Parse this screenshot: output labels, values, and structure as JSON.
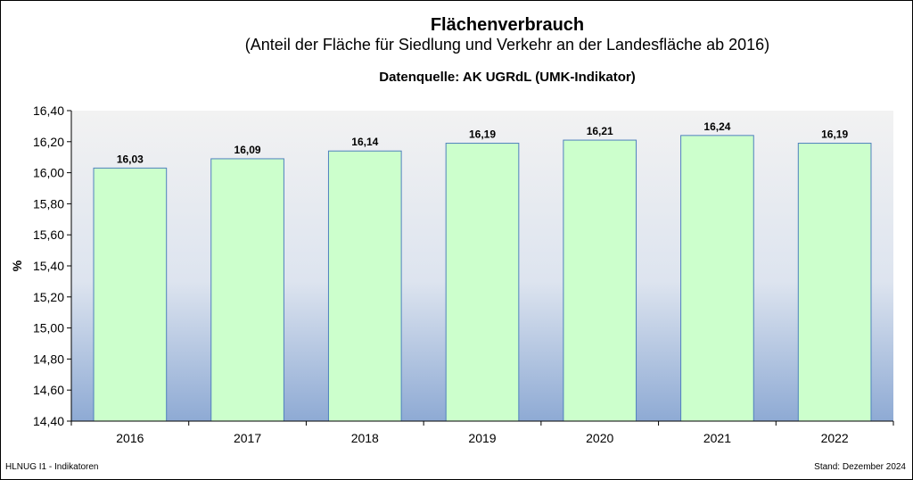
{
  "header": {
    "title": "Flächenverbrauch",
    "subtitle": "(Anteil der Fläche für Siedlung und Verkehr an der Landesfläche ab 2016)",
    "source": "Datenquelle: AK UGRdL (UMK-Indikator)"
  },
  "footer": {
    "left": "HLNUG I1 - Indikatoren",
    "right": "Stand: Dezember 2024"
  },
  "colors": {
    "bar_fill": "#ccffcc",
    "bar_stroke": "#4f81bd",
    "plot_top": "#f2f2f2",
    "plot_bottom": "#8eaad4"
  },
  "chart_data": {
    "type": "bar",
    "categories": [
      "2016",
      "2017",
      "2018",
      "2019",
      "2020",
      "2021",
      "2022"
    ],
    "values": [
      16.03,
      16.09,
      16.14,
      16.19,
      16.21,
      16.24,
      16.19
    ],
    "value_labels": [
      "16,03",
      "16,09",
      "16,14",
      "16,19",
      "16,21",
      "16,24",
      "16,19"
    ],
    "ylabel": "%",
    "ylim": [
      14.4,
      16.4
    ],
    "yticks": [
      14.4,
      14.6,
      14.8,
      15.0,
      15.2,
      15.4,
      15.6,
      15.8,
      16.0,
      16.2,
      16.4
    ],
    "ytick_labels": [
      "14,40",
      "14,60",
      "14,80",
      "15,00",
      "15,20",
      "15,40",
      "15,60",
      "15,80",
      "16,00",
      "16,20",
      "16,40"
    ],
    "grid": false,
    "legend": "none"
  }
}
